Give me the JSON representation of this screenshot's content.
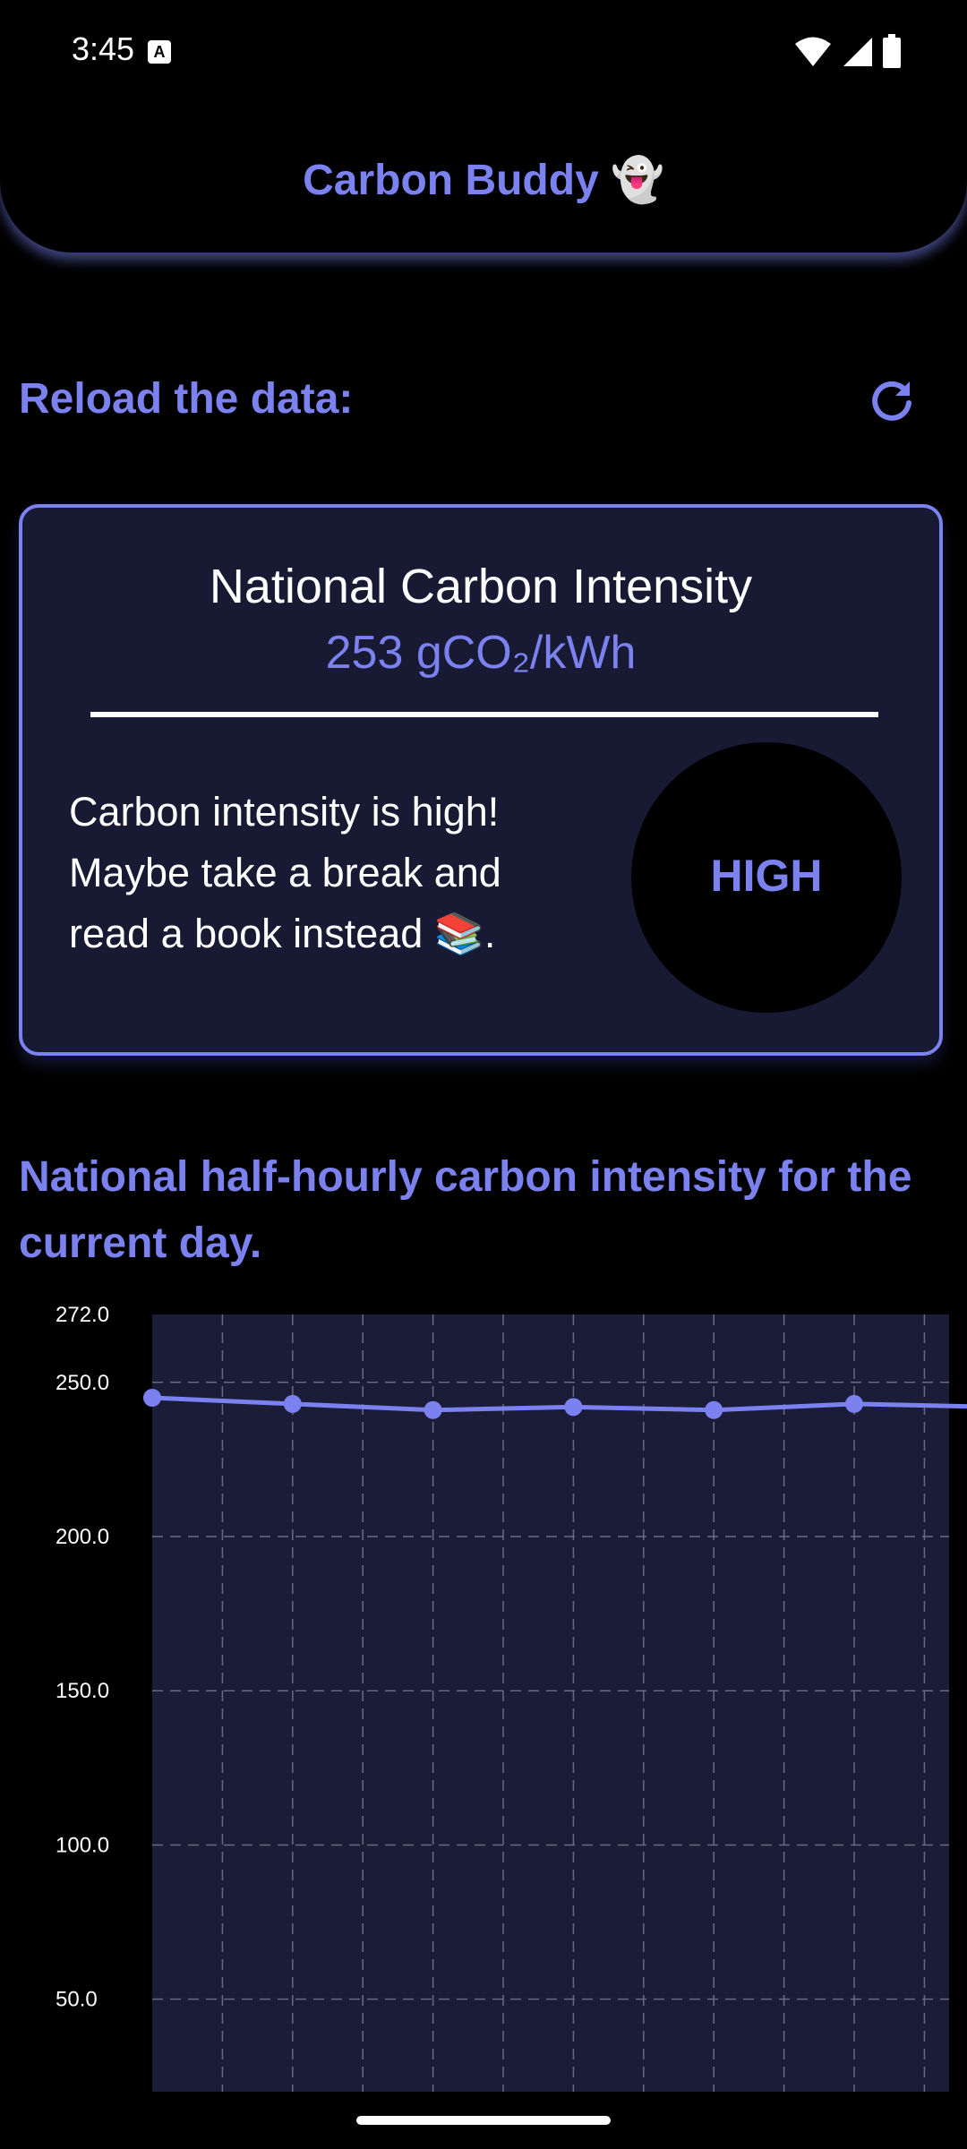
{
  "status_bar": {
    "time": "3:45",
    "notification_icon_letter": "A",
    "icons": [
      "wifi-icon",
      "signal-icon",
      "battery-icon"
    ]
  },
  "app_bar": {
    "title": "Carbon Buddy 👻"
  },
  "reload": {
    "label": "Reload the data:",
    "icon": "refresh-icon"
  },
  "card": {
    "title": "National Carbon Intensity",
    "value": "253 gCO₂/kWh",
    "message": "Carbon intensity is high! Maybe take a break and read a book instead 📚.",
    "level": "HIGH"
  },
  "chart_section": {
    "heading": "National half-hourly carbon intensity for the current day."
  },
  "colors": {
    "accent": "#7b82f0",
    "background": "#000000",
    "card_background": "#181a33",
    "chart_background": "#1b1c38",
    "grid": "#6a6b80"
  },
  "chart_data": {
    "type": "line",
    "title": "",
    "xlabel": "",
    "ylabel": "",
    "ylim": [
      20,
      272
    ],
    "y_ticks": [
      "272.0",
      "250.0",
      "200.0",
      "150.0",
      "100.0",
      "50.0"
    ],
    "grid": true,
    "series": [
      {
        "values": [
          245,
          243,
          241,
          242,
          241,
          243,
          242
        ]
      }
    ]
  }
}
